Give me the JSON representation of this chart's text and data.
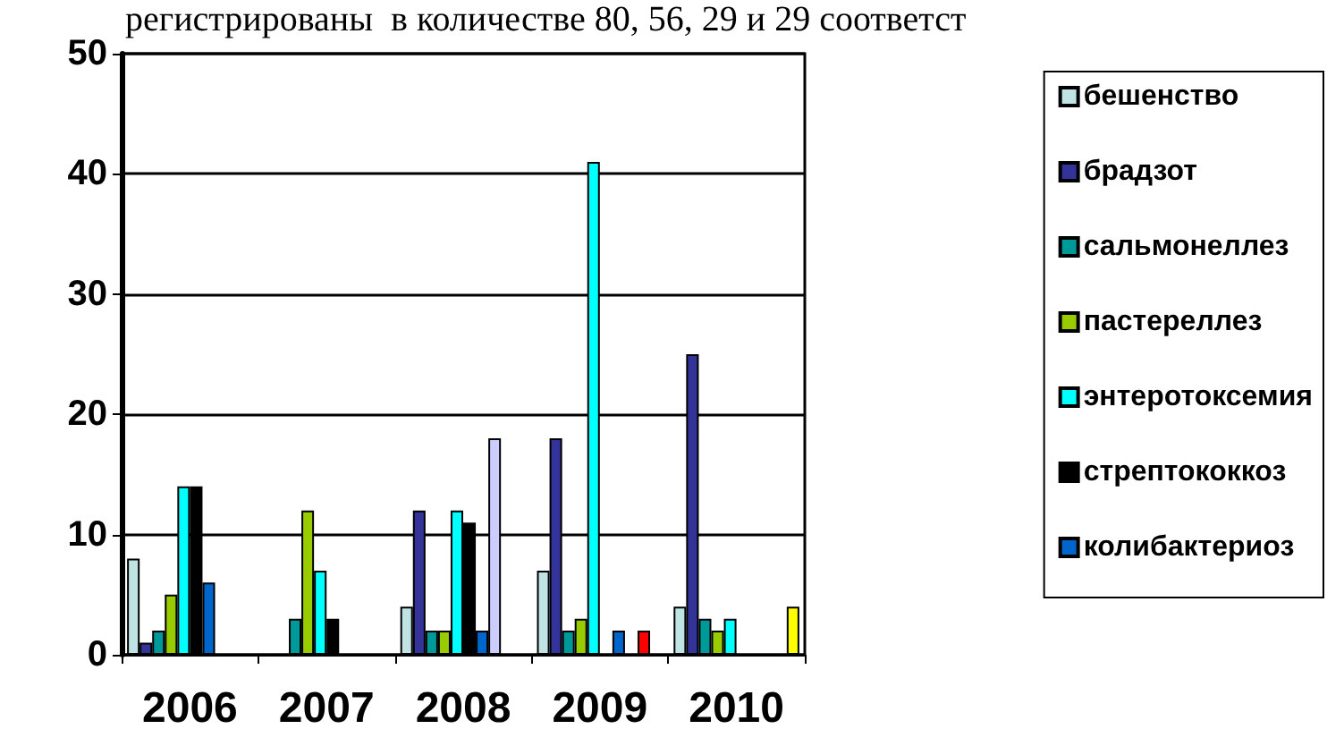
{
  "chart_data": {
    "type": "bar",
    "annotations": [
      "регистрированы  в количестве 80, 56, 29 и 29 соответст"
    ],
    "categories": [
      "2006",
      "2007",
      "2008",
      "2009",
      "2010"
    ],
    "series": [
      {
        "name": "бешенство",
        "color": "#c0e4e4",
        "values": [
          8,
          null,
          4,
          7,
          4
        ]
      },
      {
        "name": "брадзот",
        "color": "#333399",
        "values": [
          1,
          null,
          12,
          18,
          25
        ]
      },
      {
        "name": "сальмонеллез",
        "color": "#009999",
        "values": [
          2,
          3,
          2,
          2,
          3
        ]
      },
      {
        "name": "пастереллез",
        "color": "#99cc00",
        "values": [
          5,
          12,
          2,
          3,
          2
        ]
      },
      {
        "name": "энтеротоксемия",
        "color": "#00ffff",
        "values": [
          14,
          7,
          12,
          41,
          3
        ]
      },
      {
        "name": "стрептококкоз",
        "color": "#000000",
        "values": [
          14,
          3,
          11,
          null,
          null
        ]
      },
      {
        "name": "колибактериоз",
        "color": "#0066cc",
        "values": [
          6,
          null,
          2,
          2,
          null
        ]
      },
      {
        "color": "#ccccff",
        "values": [
          null,
          null,
          18,
          null,
          null
        ]
      },
      {
        "color": "#ff0000",
        "values": [
          null,
          null,
          null,
          2,
          null
        ]
      },
      {
        "color": "#ffff00",
        "values": [
          null,
          null,
          null,
          null,
          4
        ]
      }
    ],
    "ylim": [
      0,
      50
    ],
    "yticks": [
      0,
      10,
      20,
      30,
      40,
      50
    ],
    "grid": "y",
    "legend": "right"
  }
}
